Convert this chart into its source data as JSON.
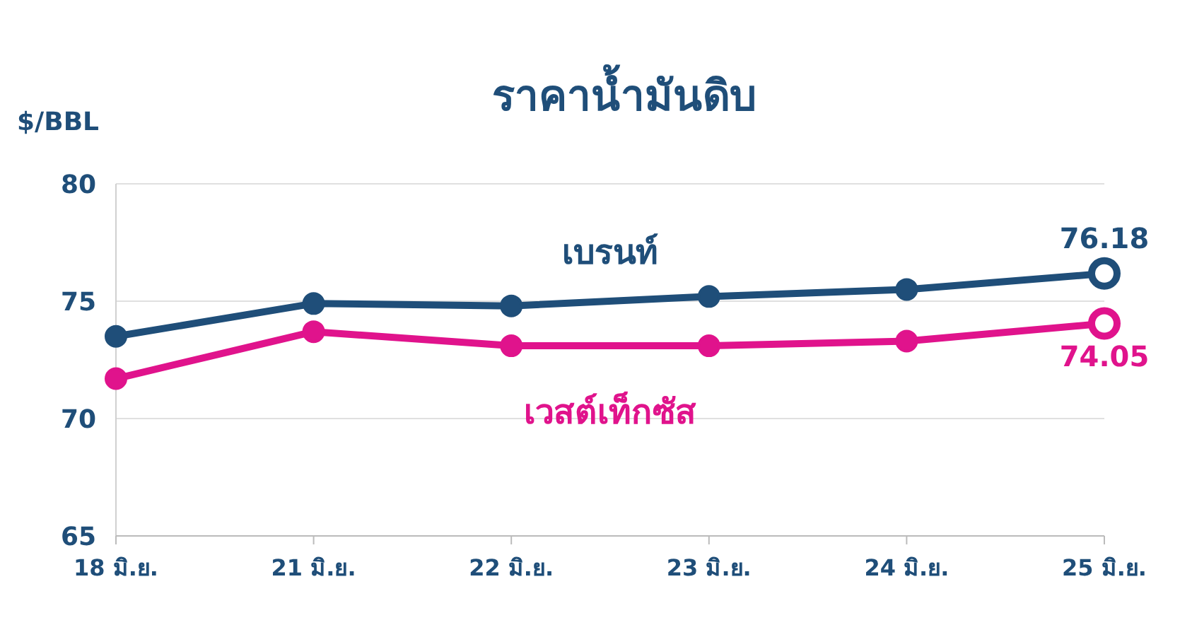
{
  "chart_data": {
    "type": "line",
    "title": "ราคาน้ำมันดิบ",
    "ylabel": "$/BBL",
    "categories": [
      "18 มิ.ย.",
      "21 มิ.ย.",
      "22 มิ.ย.",
      "23 มิ.ย.",
      "24 มิ.ย.",
      "25 มิ.ย."
    ],
    "series": [
      {
        "name": "เบรนท์",
        "color": "#1f4e79",
        "values": [
          73.5,
          74.9,
          74.8,
          75.2,
          75.5,
          76.18
        ],
        "value_labels": [
          null,
          null,
          null,
          null,
          null,
          "76.18"
        ]
      },
      {
        "name": "เวสต์เท็กซัส",
        "color": "#e0138c",
        "values": [
          71.7,
          73.7,
          73.1,
          73.1,
          73.3,
          74.05
        ],
        "value_labels": [
          null,
          null,
          null,
          null,
          null,
          "74.05"
        ]
      }
    ],
    "ylim": [
      65,
      80
    ],
    "yticks": [
      65,
      70,
      75,
      80
    ],
    "grid": "y",
    "marker": "circle",
    "line_style": "solid"
  }
}
